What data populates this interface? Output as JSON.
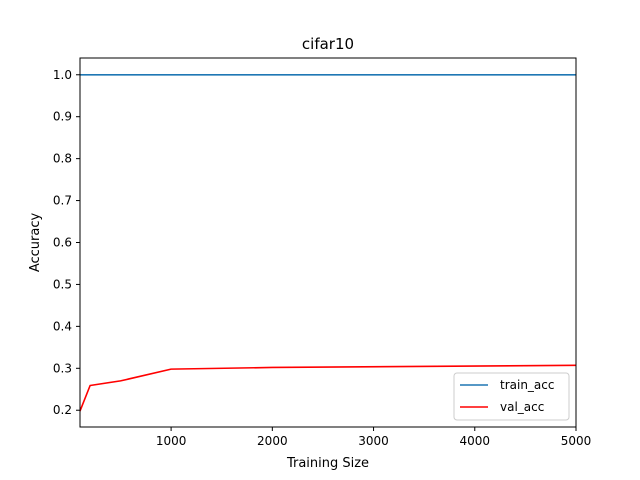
{
  "chart_data": {
    "type": "line",
    "title": "cifar10",
    "xlabel": "Training Size",
    "ylabel": "Accuracy",
    "xlim": [
      100,
      5000
    ],
    "ylim": [
      0.16,
      1.04
    ],
    "xticks": [
      1000,
      2000,
      3000,
      4000,
      5000
    ],
    "yticks": [
      0.2,
      0.3,
      0.4,
      0.5,
      0.6,
      0.7,
      0.8,
      0.9,
      1.0
    ],
    "xtick_labels": [
      "1000",
      "2000",
      "3000",
      "4000",
      "5000"
    ],
    "ytick_labels": [
      "0.2",
      "0.3",
      "0.4",
      "0.5",
      "0.6",
      "0.7",
      "0.8",
      "0.9",
      "1.0"
    ],
    "grid": false,
    "legend_position": "lower right",
    "series": [
      {
        "name": "train_acc",
        "color": "#1f77b4",
        "x": [
          100,
          200,
          500,
          1000,
          2000,
          5000
        ],
        "y": [
          1.0,
          1.0,
          1.0,
          1.0,
          1.0,
          1.0
        ]
      },
      {
        "name": "val_acc",
        "color": "#ff0000",
        "x": [
          100,
          200,
          500,
          1000,
          2000,
          5000
        ],
        "y": [
          0.198,
          0.259,
          0.27,
          0.298,
          0.302,
          0.307
        ]
      }
    ]
  }
}
